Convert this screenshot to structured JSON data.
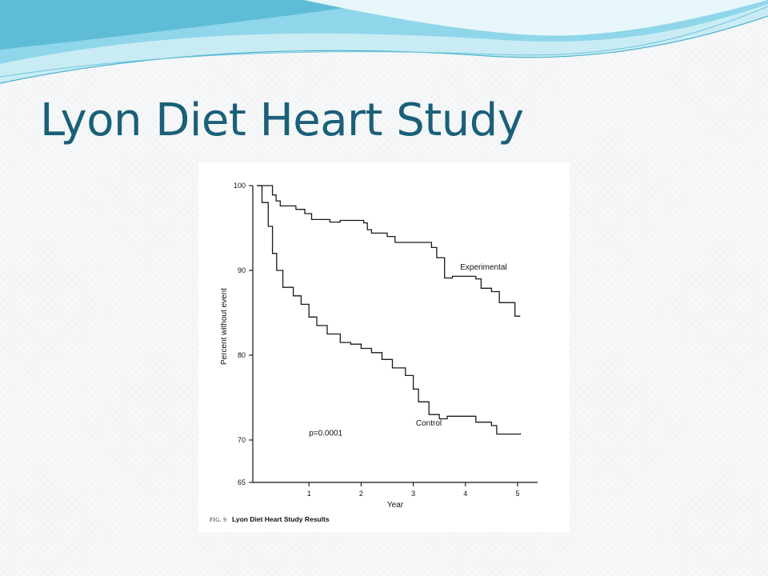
{
  "slide": {
    "title": "Lyon Diet Heart Study"
  },
  "colors": {
    "title": "#1a6078",
    "wave_light": "#bfe8f2",
    "wave_mid": "#7fd0e8",
    "wave_dark": "#3aa9c6"
  },
  "caption": {
    "fig_label": "FIG. 9",
    "text": "Lyon Diet Heart Study Results"
  },
  "chart_data": {
    "type": "line",
    "step": true,
    "title": "",
    "xlabel": "Year",
    "ylabel": "Percent without event",
    "xlim": [
      0,
      5.25
    ],
    "ylim": [
      65,
      100
    ],
    "xticks": [
      1,
      2,
      3,
      4,
      5
    ],
    "xtick_labels": [
      "1",
      "2",
      "3",
      "4",
      "5"
    ],
    "yticks": [
      65,
      70,
      80,
      90,
      100
    ],
    "ytick_labels": [
      "65",
      "70",
      "80",
      "90",
      "100"
    ],
    "grid": false,
    "legend": "none",
    "annotations": [
      {
        "text": "p=0.0001",
        "x": 1.0,
        "y": 70.5
      }
    ],
    "series": [
      {
        "name": "Experimental",
        "label_at": {
          "x": 3.9,
          "y": 90.1
        },
        "points": [
          [
            0,
            100
          ],
          [
            0.2,
            100
          ],
          [
            0.3,
            98.9
          ],
          [
            0.37,
            98.2
          ],
          [
            0.45,
            97.6
          ],
          [
            0.75,
            97.2
          ],
          [
            0.92,
            96.7
          ],
          [
            1.05,
            96.0
          ],
          [
            1.4,
            95.7
          ],
          [
            1.6,
            95.9
          ],
          [
            2.05,
            95.6
          ],
          [
            2.12,
            94.8
          ],
          [
            2.2,
            94.4
          ],
          [
            2.5,
            94.0
          ],
          [
            2.65,
            93.3
          ],
          [
            3.35,
            92.7
          ],
          [
            3.45,
            91.5
          ],
          [
            3.6,
            89.1
          ],
          [
            3.75,
            89.3
          ],
          [
            4.2,
            89.0
          ],
          [
            4.3,
            87.9
          ],
          [
            4.5,
            87.5
          ],
          [
            4.65,
            86.2
          ],
          [
            4.8,
            86.2
          ],
          [
            4.95,
            84.6
          ],
          [
            5.05,
            84.6
          ]
        ]
      },
      {
        "name": "Control",
        "label_at": {
          "x": 3.05,
          "y": 71.7
        },
        "points": [
          [
            0,
            100
          ],
          [
            0.1,
            98.0
          ],
          [
            0.22,
            95.2
          ],
          [
            0.3,
            92.0
          ],
          [
            0.38,
            90.0
          ],
          [
            0.5,
            88.0
          ],
          [
            0.7,
            87.0
          ],
          [
            0.85,
            86.0
          ],
          [
            1.0,
            84.5
          ],
          [
            1.15,
            83.5
          ],
          [
            1.35,
            82.5
          ],
          [
            1.6,
            81.5
          ],
          [
            1.8,
            81.3
          ],
          [
            2.0,
            80.8
          ],
          [
            2.2,
            80.3
          ],
          [
            2.4,
            79.5
          ],
          [
            2.6,
            78.5
          ],
          [
            2.85,
            77.6
          ],
          [
            3.0,
            76.0
          ],
          [
            3.1,
            74.5
          ],
          [
            3.3,
            73.0
          ],
          [
            3.5,
            72.5
          ],
          [
            3.65,
            72.8
          ],
          [
            4.2,
            72.1
          ],
          [
            4.5,
            71.7
          ],
          [
            4.6,
            70.7
          ],
          [
            5.05,
            70.8
          ]
        ]
      }
    ]
  }
}
